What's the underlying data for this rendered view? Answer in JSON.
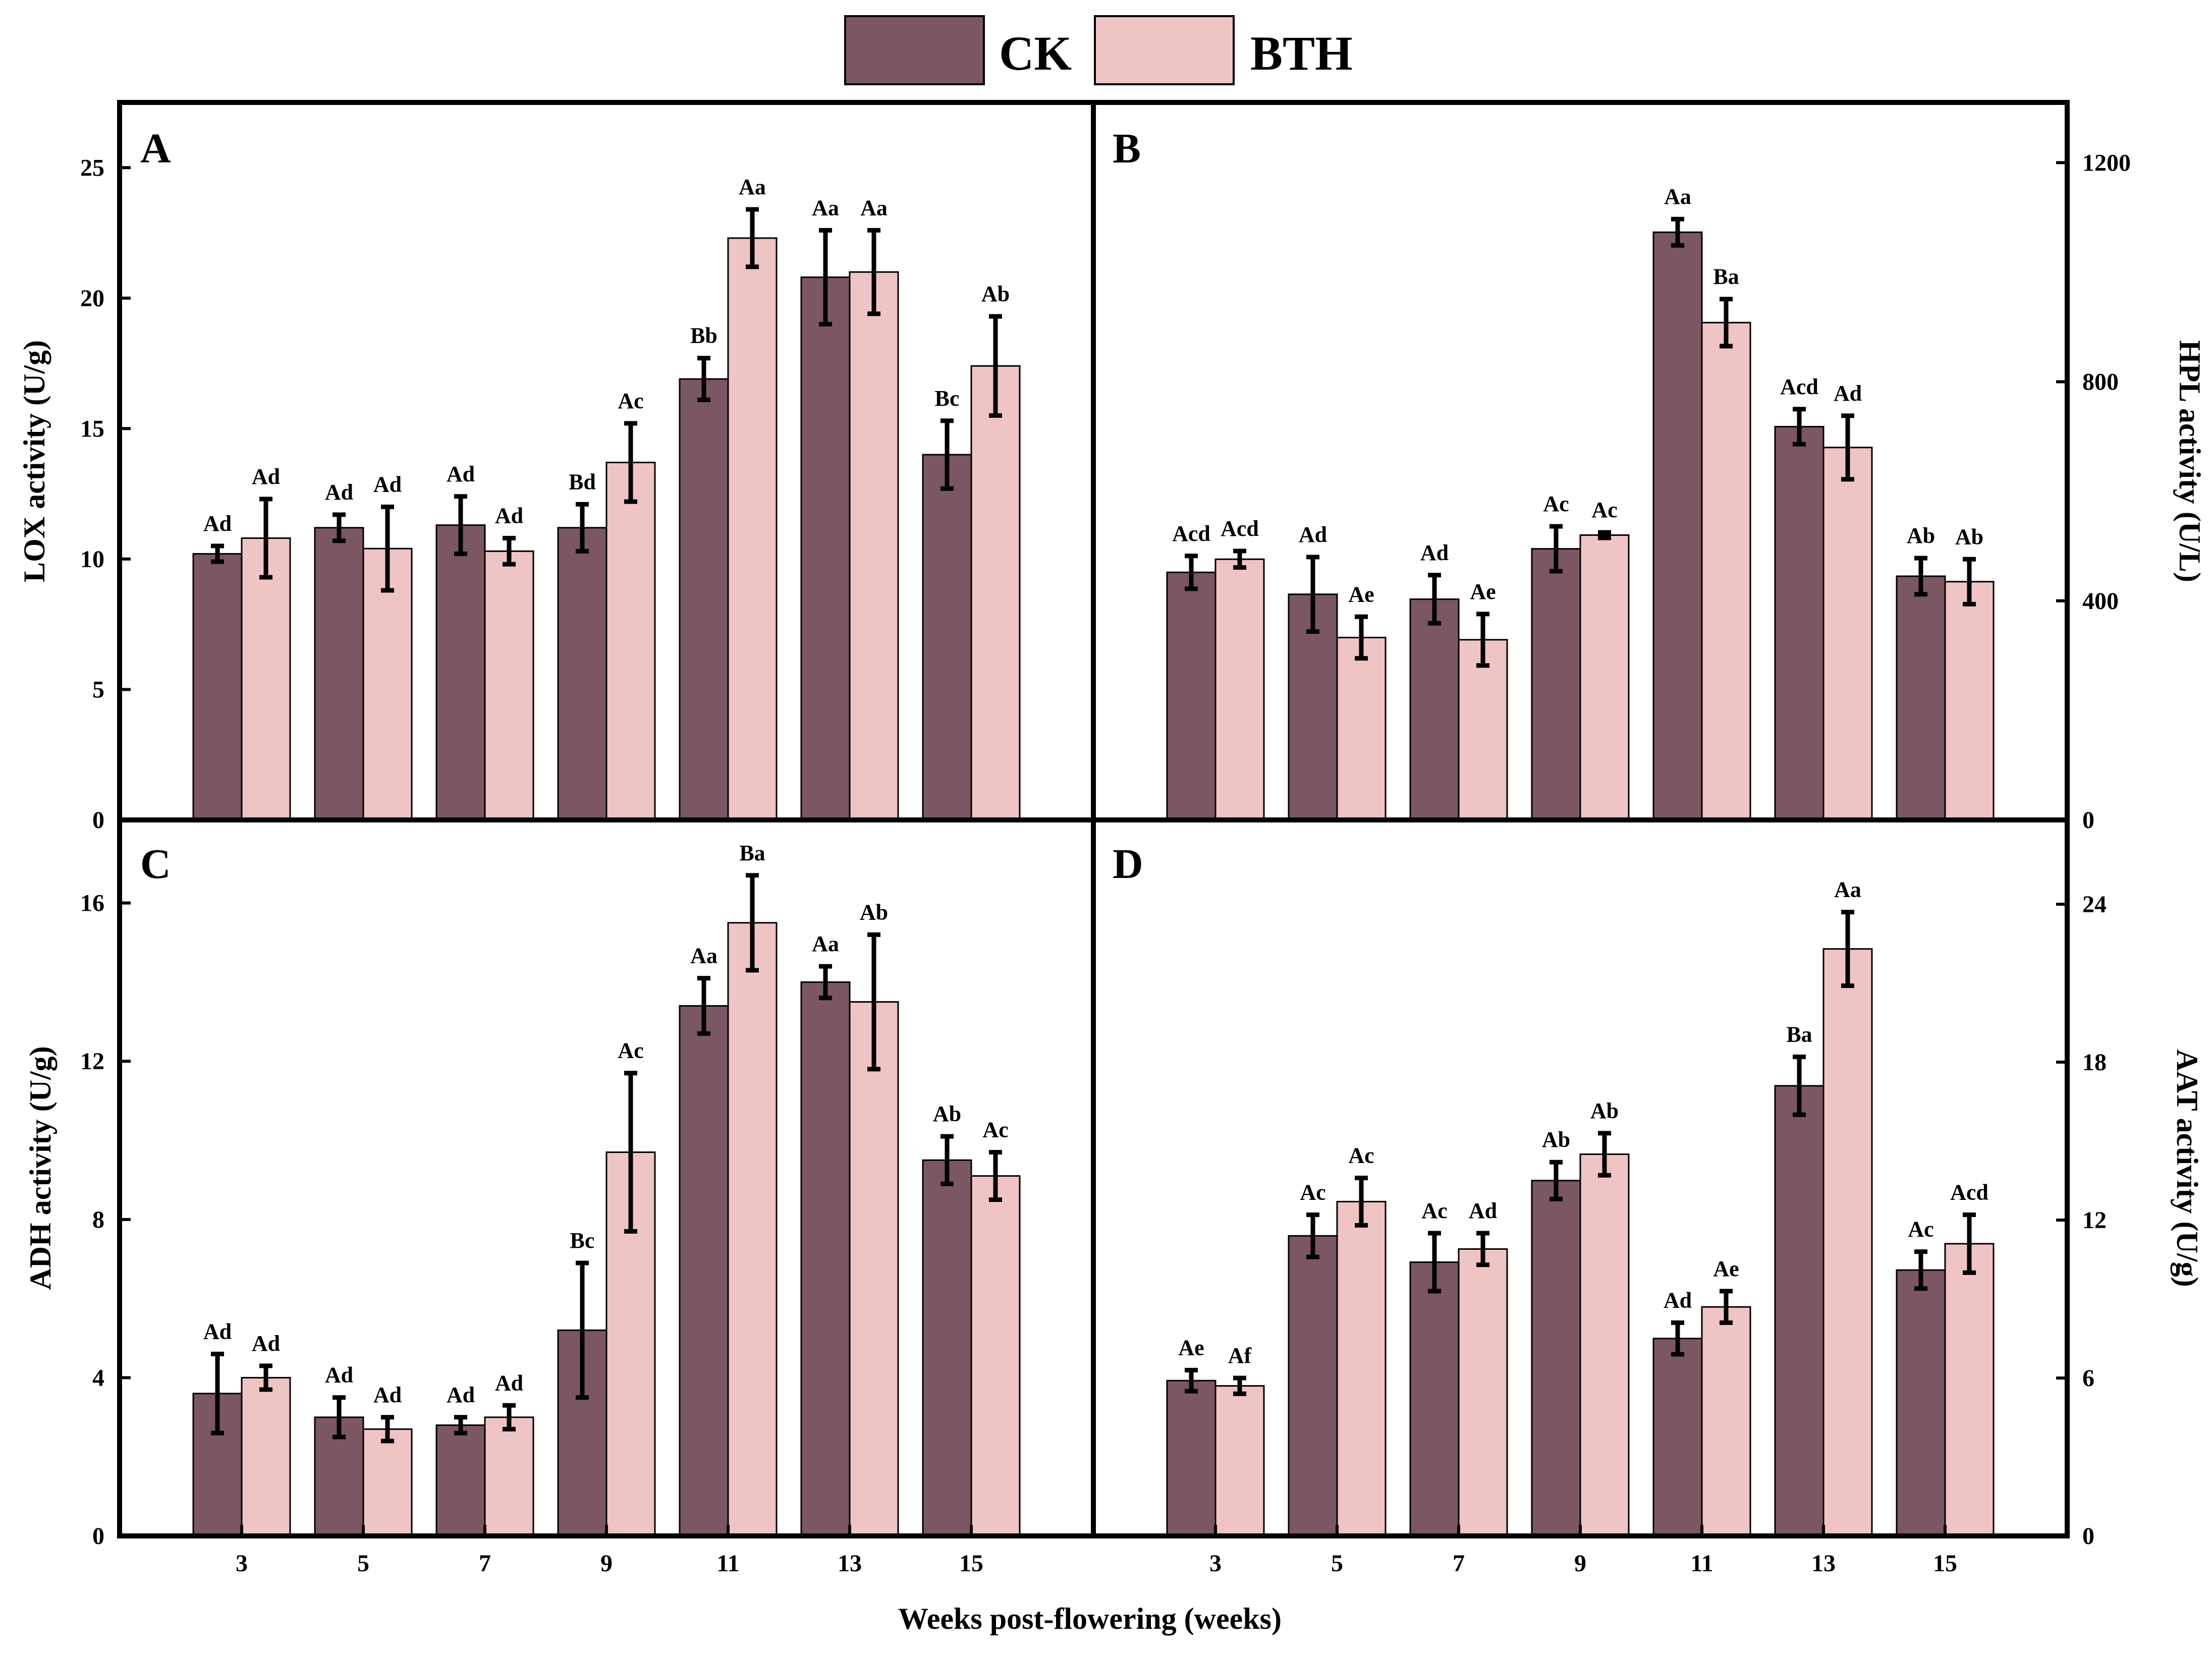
{
  "chart_data": {
    "type": "bar",
    "legend": [
      {
        "name": "CK",
        "color": "#7b5762"
      },
      {
        "name": "BTH",
        "color": "#efc4c4"
      }
    ],
    "legend_position": "top-center",
    "xlabel": "Weeks post-flowering (weeks)",
    "categories": [
      "3",
      "5",
      "7",
      "9",
      "11",
      "13",
      "15"
    ],
    "panels": [
      {
        "id": "A",
        "ylabel": "LOX activity (U/g)",
        "y_axis_side": "left",
        "ylim": [
          0,
          27.5
        ],
        "yticks": [
          0,
          5,
          10,
          15,
          20,
          25
        ],
        "series": [
          {
            "name": "CK",
            "values": [
              10.2,
              11.2,
              11.3,
              11.2,
              16.9,
              20.8,
              14.0
            ],
            "errors": [
              0.3,
              0.5,
              1.1,
              0.9,
              0.8,
              1.8,
              1.3
            ],
            "labels": [
              "Ad",
              "Ad",
              "Ad",
              "Bd",
              "Bb",
              "Aa",
              "Bc"
            ]
          },
          {
            "name": "BTH",
            "values": [
              10.8,
              10.4,
              10.3,
              13.7,
              22.3,
              21.0,
              17.4
            ],
            "errors": [
              1.5,
              1.6,
              0.5,
              1.5,
              1.1,
              1.6,
              1.9
            ],
            "labels": [
              "Ad",
              "Ad",
              "Ad",
              "Ac",
              "Aa",
              "Aa",
              "Ab"
            ]
          }
        ]
      },
      {
        "id": "B",
        "ylabel": "HPL activity (U/L)",
        "y_axis_side": "right",
        "ylim": [
          0,
          1310
        ],
        "yticks": [
          0,
          400,
          800,
          1200
        ],
        "series": [
          {
            "name": "CK",
            "values": [
              452,
              412,
              403,
              495,
              1073,
              718,
              445
            ],
            "errors": [
              30,
              68,
              44,
              41,
              24,
              32,
              33
            ],
            "labels": [
              "Acd",
              "Ad",
              "Ad",
              "Ac",
              "Aa",
              "Acd",
              "Ab"
            ]
          },
          {
            "name": "BTH",
            "values": [
              476,
              333,
              329,
              520,
              908,
              680,
              435
            ],
            "errors": [
              15,
              38,
              47,
              5,
              43,
              58,
              41
            ],
            "labels": [
              "Acd",
              "Ae",
              "Ae",
              "Ac",
              "Ba",
              "Ad",
              "Ab"
            ]
          }
        ]
      },
      {
        "id": "C",
        "ylabel": "ADH activity (U/g)",
        "y_axis_side": "left",
        "ylim": [
          0,
          18.1
        ],
        "yticks": [
          0,
          4,
          8,
          12,
          16
        ],
        "series": [
          {
            "name": "CK",
            "values": [
              3.6,
              3.0,
              2.8,
              5.2,
              13.4,
              14.0,
              9.5
            ],
            "errors": [
              1.0,
              0.5,
              0.2,
              1.7,
              0.7,
              0.4,
              0.6
            ],
            "labels": [
              "Ad",
              "Ad",
              "Ad",
              "Bc",
              "Aa",
              "Aa",
              "Ab"
            ]
          },
          {
            "name": "BTH",
            "values": [
              4.0,
              2.7,
              3.0,
              9.7,
              15.5,
              13.5,
              9.1
            ],
            "errors": [
              0.3,
              0.3,
              0.3,
              2.0,
              1.2,
              1.7,
              0.6
            ],
            "labels": [
              "Ad",
              "Ad",
              "Ad",
              "Ac",
              "Ba",
              "Ab",
              "Ac"
            ]
          }
        ]
      },
      {
        "id": "D",
        "ylabel": "AAT activity (U/g)",
        "y_axis_side": "right",
        "ylim": [
          0,
          27.2
        ],
        "yticks": [
          0,
          6,
          12,
          18,
          24
        ],
        "series": [
          {
            "name": "CK",
            "values": [
              5.9,
              11.4,
              10.4,
              13.5,
              7.5,
              17.1,
              10.1
            ],
            "errors": [
              0.4,
              0.8,
              1.1,
              0.7,
              0.6,
              1.1,
              0.7
            ],
            "labels": [
              "Ae",
              "Ac",
              "Ac",
              "Ab",
              "Ad",
              "Ba",
              "Ac"
            ]
          },
          {
            "name": "BTH",
            "values": [
              5.7,
              12.7,
              10.9,
              14.5,
              8.7,
              22.3,
              11.1
            ],
            "errors": [
              0.3,
              0.9,
              0.6,
              0.8,
              0.6,
              1.4,
              1.1
            ],
            "labels": [
              "Af",
              "Ac",
              "Ad",
              "Ab",
              "Ae",
              "Aa",
              "Acd"
            ]
          }
        ]
      }
    ]
  }
}
